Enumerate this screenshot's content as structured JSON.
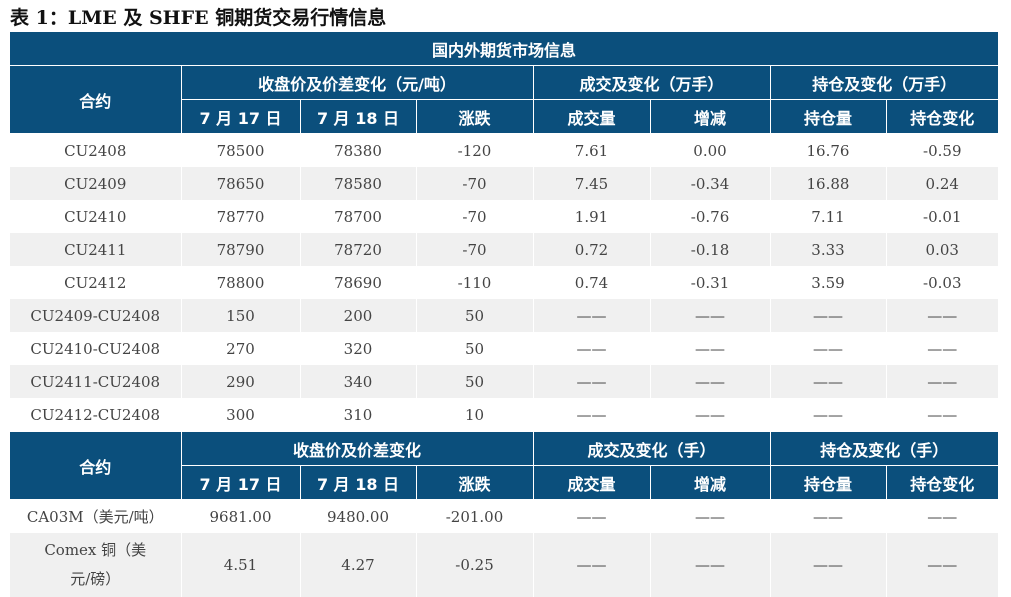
{
  "title": "表 1：LME 及 SHFE 铜期货交易行情信息",
  "section_title": "国内外期货市场信息",
  "header1": {
    "contract": "合约",
    "price_group": "收盘价及价差变化（元/吨）",
    "volume_group": "成交及变化（万手）",
    "oi_group": "持仓及变化（万手）",
    "cols": [
      "7 月 17 日",
      "7 月 18 日",
      "涨跌",
      "成交量",
      "增减",
      "持仓量",
      "持仓变化"
    ]
  },
  "rows1": [
    [
      "CU2408",
      "78500",
      "78380",
      "-120",
      "7.61",
      "0.00",
      "16.76",
      "-0.59"
    ],
    [
      "CU2409",
      "78650",
      "78580",
      "-70",
      "7.45",
      "-0.34",
      "16.88",
      "0.24"
    ],
    [
      "CU2410",
      "78770",
      "78700",
      "-70",
      "1.91",
      "-0.76",
      "7.11",
      "-0.01"
    ],
    [
      "CU2411",
      "78790",
      "78720",
      "-70",
      "0.72",
      "-0.18",
      "3.33",
      "0.03"
    ],
    [
      "CU2412",
      "78800",
      "78690",
      "-110",
      "0.74",
      "-0.31",
      "3.59",
      "-0.03"
    ],
    [
      "CU2409-CU2408",
      "150",
      "200",
      "50",
      "——",
      "——",
      "——",
      "——"
    ],
    [
      "CU2410-CU2408",
      "270",
      "320",
      "50",
      "——",
      "——",
      "——",
      "——"
    ],
    [
      "CU2411-CU2408",
      "290",
      "340",
      "50",
      "——",
      "——",
      "——",
      "——"
    ],
    [
      "CU2412-CU2408",
      "300",
      "310",
      "10",
      "——",
      "——",
      "——",
      "——"
    ]
  ],
  "header2": {
    "contract": "合约",
    "price_group": "收盘价及价差变化",
    "volume_group": "成交及变化（手）",
    "oi_group": "持仓及变化（手）",
    "cols": [
      "7 月 17 日",
      "7 月 18 日",
      "涨跌",
      "成交量",
      "增减",
      "持仓量",
      "持仓变化"
    ]
  },
  "rows2": [
    [
      "CA03M（美元/吨）",
      "9681.00",
      "9480.00",
      "-201.00",
      "——",
      "——",
      "——",
      "——"
    ],
    [
      "Comex 铜（美元/磅）",
      "4.51",
      "4.27",
      "-0.25",
      "——",
      "——",
      "——",
      "——"
    ]
  ],
  "colors": {
    "header_bg": "#0b4f7c",
    "stripe_bg": "#f0f0f0"
  }
}
